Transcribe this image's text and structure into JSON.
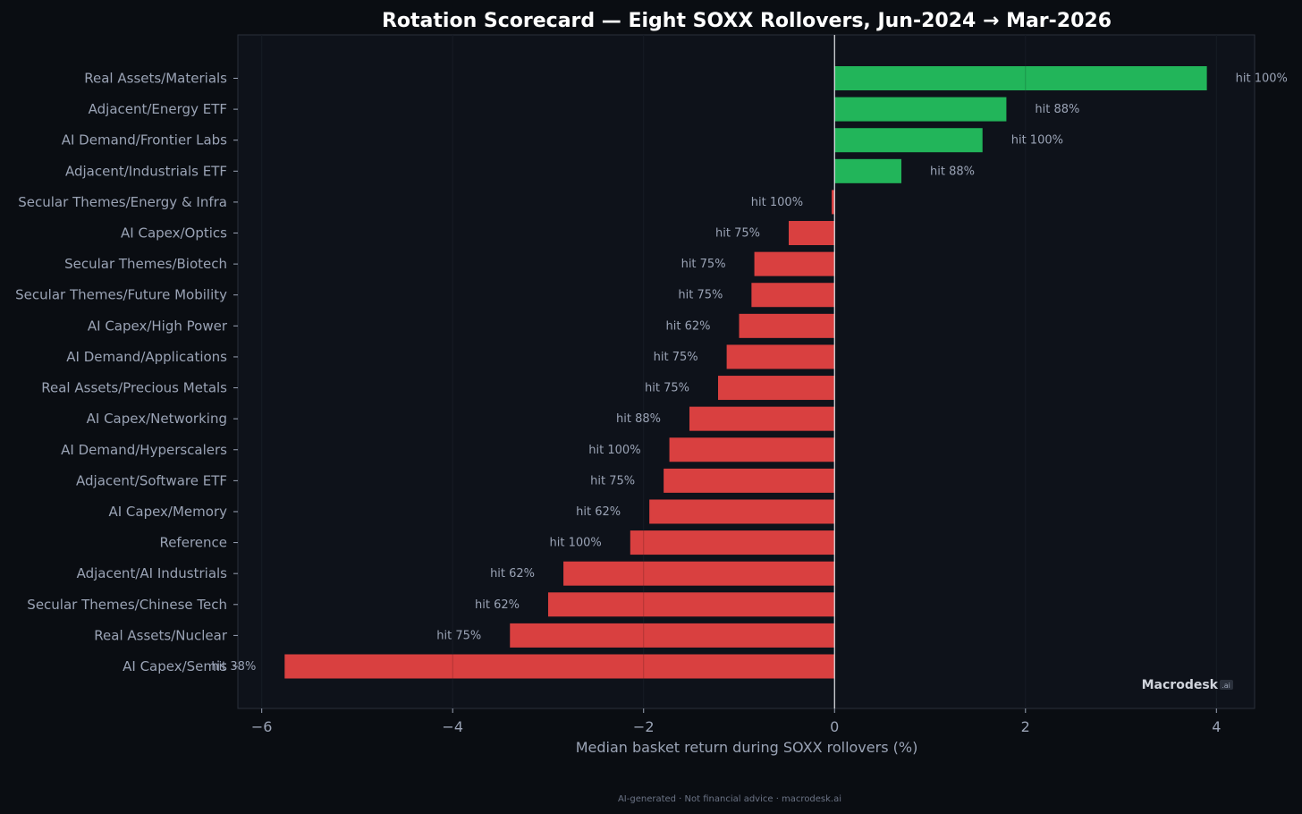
{
  "chart_data": {
    "type": "bar",
    "orientation": "horizontal",
    "title": "Rotation Scorecard — Eight SOXX Rollovers, Jun-2024 → Mar-2026",
    "xlabel": "Median basket return during SOXX rollovers (%)",
    "xlim": [
      -6.25,
      4.4
    ],
    "xticks": [
      -6,
      -4,
      -2,
      0,
      2,
      4
    ],
    "xtick_labels": [
      "−6",
      "−4",
      "−2",
      "0",
      "2",
      "4"
    ],
    "grid": true,
    "positive_color": "#22b55a",
    "negative_color": "#d94040",
    "categories": [
      "Real Assets/Materials",
      "Adjacent/Energy ETF",
      "AI Demand/Frontier Labs",
      "Adjacent/Industrials ETF",
      "Secular Themes/Energy & Infra",
      "AI Capex/Optics",
      "Secular Themes/Biotech",
      "Secular Themes/Future Mobility",
      "AI Capex/High Power",
      "AI Demand/Applications",
      "Real Assets/Precious Metals",
      "AI Capex/Networking",
      "AI Demand/Hyperscalers",
      "Adjacent/Software ETF",
      "AI Capex/Memory",
      "Reference",
      "Adjacent/AI Industrials",
      "Secular Themes/Chinese Tech",
      "Real Assets/Nuclear",
      "AI Capex/Semis"
    ],
    "values": [
      3.9,
      1.8,
      1.55,
      0.7,
      -0.03,
      -0.48,
      -0.84,
      -0.87,
      -1.0,
      -1.13,
      -1.22,
      -1.52,
      -1.73,
      -1.79,
      -1.94,
      -2.14,
      -2.84,
      -3.0,
      -3.4,
      -5.76
    ],
    "hit_labels": [
      "hit 100%",
      "hit 88%",
      "hit 100%",
      "hit 88%",
      "hit 100%",
      "hit 75%",
      "hit 75%",
      "hit 75%",
      "hit 62%",
      "hit 75%",
      "hit 75%",
      "hit 88%",
      "hit 100%",
      "hit 75%",
      "hit 62%",
      "hit 100%",
      "hit 62%",
      "hit 62%",
      "hit 75%",
      "hit 38%"
    ]
  },
  "watermark": {
    "brand": "Macrodesk",
    "suffix": ".ai"
  },
  "footer": "AI-generated · Not financial advice · macrodesk.ai"
}
